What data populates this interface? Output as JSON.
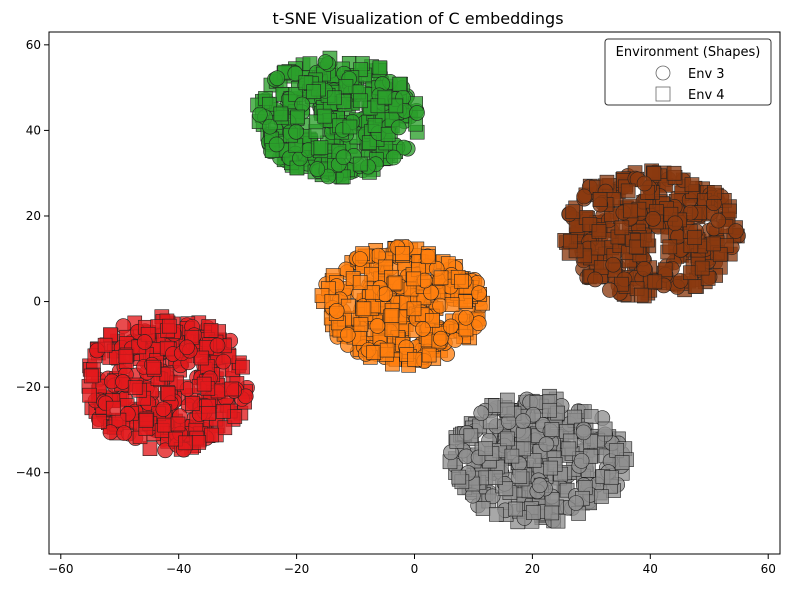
{
  "chart_data": {
    "type": "scatter",
    "title": "t-SNE Visualization of C embeddings",
    "xlabel": "",
    "ylabel": "",
    "xlim": [
      -62,
      62
    ],
    "ylim": [
      -59,
      63
    ],
    "xticks": [
      -60,
      -40,
      -20,
      0,
      20,
      40,
      60
    ],
    "yticks": [
      -40,
      -20,
      0,
      20,
      40,
      60
    ],
    "grid": false,
    "legend": {
      "title": "Environment (Shapes)",
      "placement": "top-right",
      "entries": [
        {
          "label": "Env 3",
          "marker": "circle"
        },
        {
          "label": "Env 4",
          "marker": "square"
        }
      ]
    },
    "clusters": [
      {
        "color": "#2ca02c",
        "center": [
          -13,
          43
        ],
        "spread": [
          14,
          14
        ]
      },
      {
        "color": "#8b3a0f",
        "center": [
          40,
          16
        ],
        "spread": [
          15,
          15
        ]
      },
      {
        "color": "#ff7f0e",
        "center": [
          -2,
          -1
        ],
        "spread": [
          14,
          14
        ]
      },
      {
        "color": "#e31a1c",
        "center": [
          -42,
          -19
        ],
        "spread": [
          14,
          16
        ]
      },
      {
        "color": "#8f8f8f",
        "center": [
          21,
          -37
        ],
        "spread": [
          15,
          15
        ]
      }
    ]
  }
}
